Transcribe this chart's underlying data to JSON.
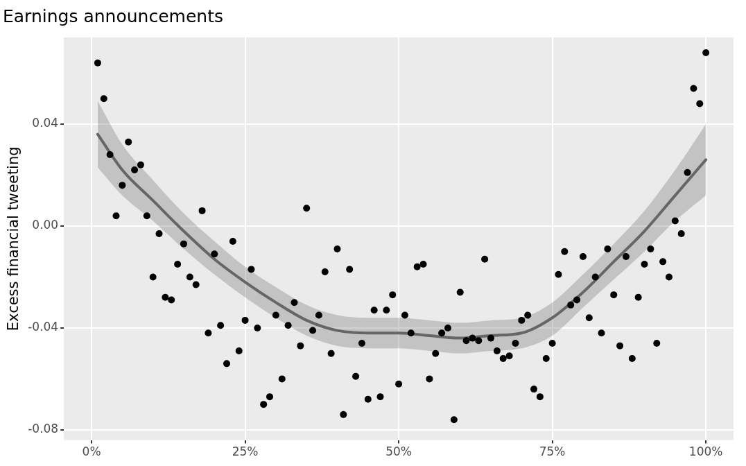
{
  "chart_data": {
    "type": "scatter",
    "title": "Earnings announcements",
    "ylabel": "Excess financial tweeting",
    "xlim": [
      -4.5,
      104.5
    ],
    "ylim": [
      -0.084,
      0.074
    ],
    "xticks": [
      {
        "value": 0,
        "label": "0%"
      },
      {
        "value": 25,
        "label": "25%"
      },
      {
        "value": 50,
        "label": "50%"
      },
      {
        "value": 75,
        "label": "75%"
      },
      {
        "value": 100,
        "label": "100%"
      }
    ],
    "yticks": [
      {
        "value": -0.08,
        "label": "-0.08"
      },
      {
        "value": -0.04,
        "label": "-0.04"
      },
      {
        "value": 0,
        "label": "0.00"
      },
      {
        "value": 0.04,
        "label": "0.04"
      }
    ],
    "grid": true,
    "legend": false,
    "marker": "circle",
    "series": [
      {
        "type": "scatter",
        "color": "#000000",
        "x": [
          1,
          2,
          3,
          4,
          5,
          6,
          7,
          8,
          9,
          10,
          11,
          12,
          13,
          14,
          15,
          16,
          17,
          18,
          19,
          20,
          21,
          22,
          23,
          24,
          25,
          26,
          27,
          28,
          29,
          30,
          31,
          32,
          33,
          34,
          35,
          36,
          37,
          38,
          39,
          40,
          41,
          42,
          43,
          44,
          45,
          46,
          47,
          48,
          49,
          50,
          51,
          52,
          53,
          54,
          55,
          56,
          57,
          58,
          59,
          60,
          61,
          62,
          63,
          64,
          65,
          66,
          67,
          68,
          69,
          70,
          71,
          72,
          73,
          74,
          75,
          76,
          77,
          78,
          79,
          80,
          81,
          82,
          83,
          84,
          85,
          86,
          87,
          88,
          89,
          90,
          91,
          92,
          93,
          94,
          95,
          96,
          97,
          98,
          99,
          100
        ],
        "values": [
          0.064,
          0.05,
          0.028,
          0.004,
          0.016,
          0.033,
          0.022,
          0.024,
          0.004,
          -0.02,
          -0.003,
          -0.028,
          -0.029,
          -0.015,
          -0.007,
          -0.02,
          -0.023,
          0.006,
          -0.042,
          -0.011,
          -0.039,
          -0.054,
          -0.006,
          -0.049,
          -0.037,
          -0.017,
          -0.04,
          -0.07,
          -0.067,
          -0.035,
          -0.06,
          -0.039,
          -0.03,
          -0.047,
          0.007,
          -0.041,
          -0.035,
          -0.018,
          -0.05,
          -0.009,
          -0.074,
          -0.017,
          -0.059,
          -0.046,
          -0.068,
          -0.033,
          -0.067,
          -0.033,
          -0.027,
          -0.062,
          -0.035,
          -0.042,
          -0.016,
          -0.015,
          -0.06,
          -0.05,
          -0.042,
          -0.04,
          -0.076,
          -0.026,
          -0.045,
          -0.044,
          -0.045,
          -0.013,
          -0.044,
          -0.049,
          -0.052,
          -0.051,
          -0.046,
          -0.037,
          -0.035,
          -0.064,
          -0.067,
          -0.052,
          -0.046,
          -0.019,
          -0.01,
          -0.031,
          -0.029,
          -0.012,
          -0.036,
          -0.02,
          -0.042,
          -0.009,
          -0.027,
          -0.047,
          -0.012,
          -0.052,
          -0.028,
          -0.015,
          -0.009,
          -0.046,
          -0.014,
          -0.02,
          0.002,
          -0.003,
          0.021,
          0.054,
          0.048,
          0.068
        ]
      },
      {
        "type": "line",
        "color": "#666666",
        "marker": "none",
        "x": [
          1,
          5,
          10,
          15,
          20,
          25,
          30,
          35,
          40,
          45,
          50,
          55,
          60,
          65,
          70,
          75,
          80,
          85,
          90,
          95,
          100
        ],
        "values": [
          0.036,
          0.022,
          0.01,
          -0.002,
          -0.013,
          -0.022,
          -0.03,
          -0.037,
          -0.041,
          -0.042,
          -0.042,
          -0.043,
          -0.044,
          -0.043,
          -0.042,
          -0.036,
          -0.026,
          -0.014,
          -0.002,
          0.012,
          0.026
        ],
        "lower": [
          0.023,
          0.012,
          0.002,
          -0.009,
          -0.019,
          -0.028,
          -0.036,
          -0.043,
          -0.047,
          -0.048,
          -0.048,
          -0.049,
          -0.05,
          -0.049,
          -0.048,
          -0.043,
          -0.032,
          -0.021,
          -0.01,
          0.002,
          0.012
        ],
        "upper": [
          0.049,
          0.032,
          0.018,
          0.005,
          -0.006,
          -0.016,
          -0.024,
          -0.031,
          -0.035,
          -0.036,
          -0.036,
          -0.037,
          -0.038,
          -0.037,
          -0.036,
          -0.03,
          -0.019,
          -0.007,
          0.006,
          0.022,
          0.04
        ]
      }
    ]
  }
}
